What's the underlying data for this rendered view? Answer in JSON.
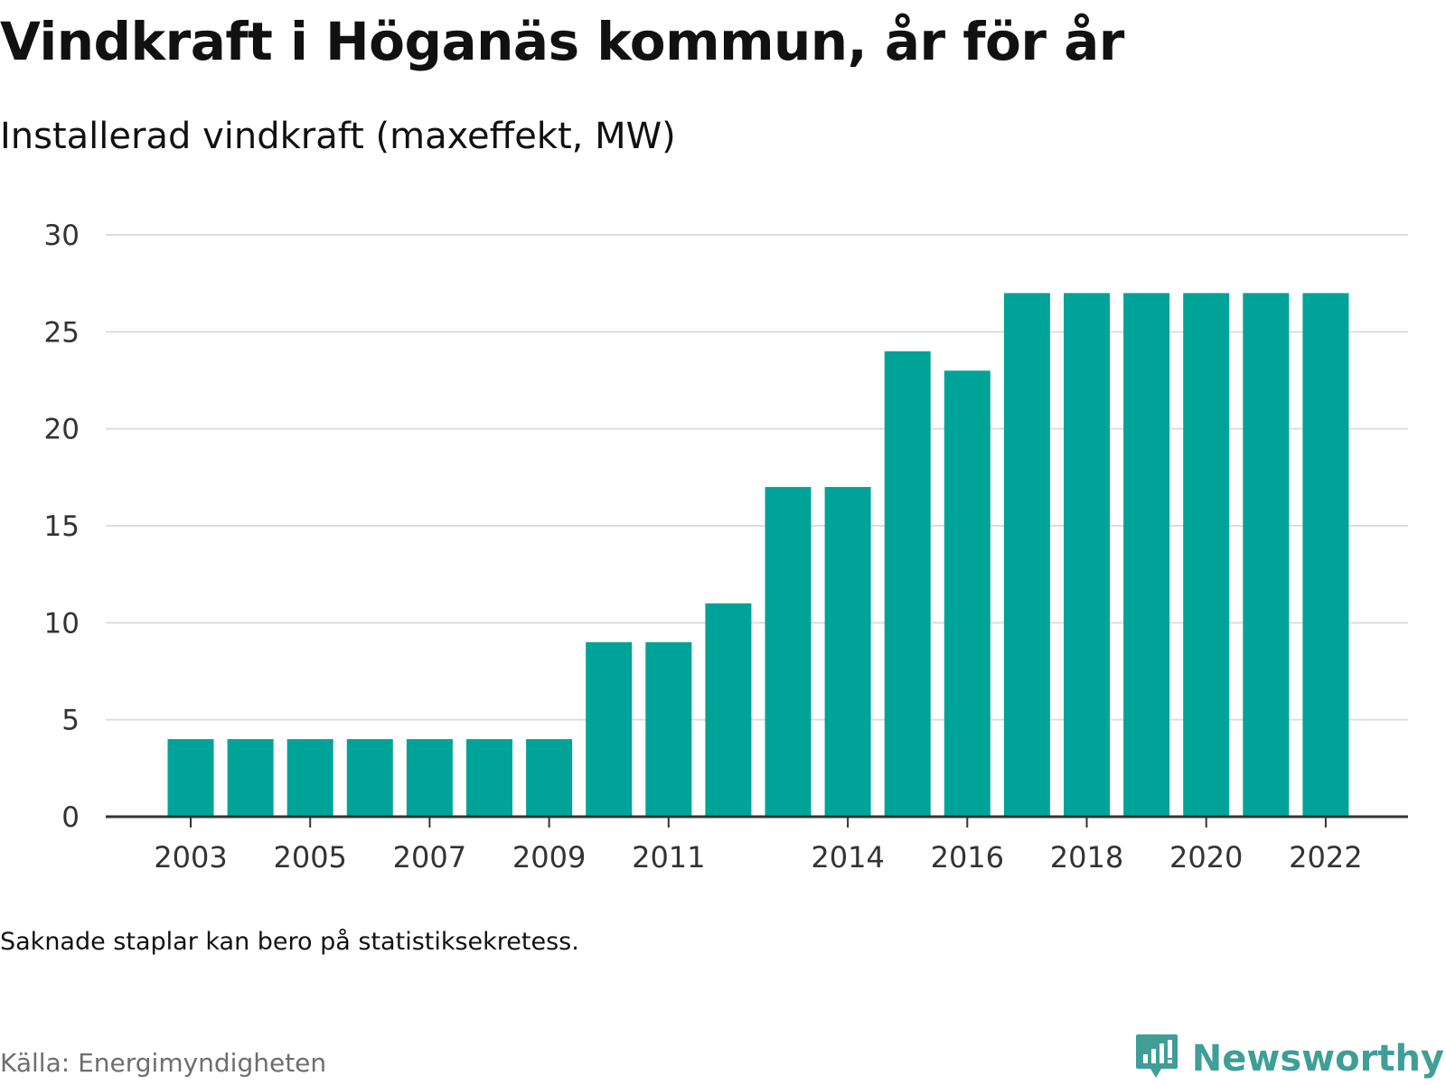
{
  "title": "Vindkraft i Höganäs kommun, år för år",
  "subtitle": "Installerad vindkraft (maxeffekt, MW)",
  "note": "Saknade staplar kan bero på statistiksekretess.",
  "source": "Källa: Energimyndigheten",
  "brand": {
    "name": "Newsworthy",
    "icon": "bar-chart-speech-bubble-icon",
    "color": "#3f9e98"
  },
  "chart_data": {
    "type": "bar",
    "bar_color": "#00a398",
    "categories": [
      "2003",
      "2004",
      "2005",
      "2006",
      "2007",
      "2008",
      "2009",
      "2010",
      "2011",
      "2012",
      "2013",
      "2014",
      "2015",
      "2016",
      "2017",
      "2018",
      "2019",
      "2020",
      "2021",
      "2022"
    ],
    "values": [
      4,
      4,
      4,
      4,
      4,
      4,
      4,
      9,
      9,
      11,
      17,
      17,
      24,
      23,
      27,
      27,
      27,
      27,
      27,
      27
    ],
    "x_tick_labels": [
      "2003",
      "2005",
      "2007",
      "2009",
      "2011",
      "2014",
      "2016",
      "2018",
      "2020",
      "2022"
    ],
    "y_ticks": [
      0,
      5,
      10,
      15,
      20,
      25,
      30
    ],
    "ylim": [
      0,
      30
    ],
    "grid": true
  }
}
